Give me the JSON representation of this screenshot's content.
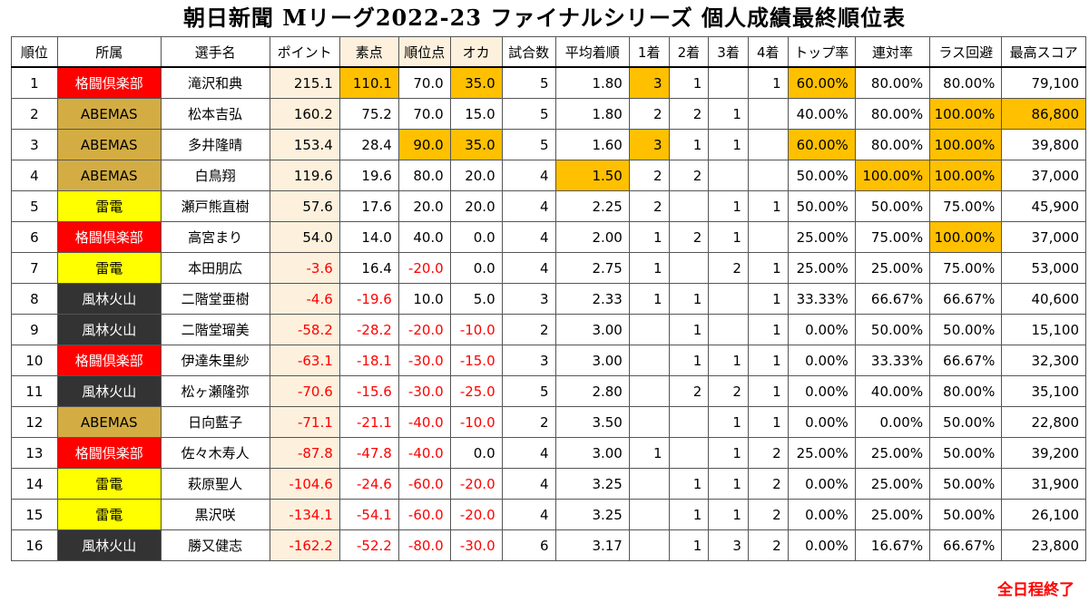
{
  "title": "朝日新聞 Mリーグ2022-23 ファイナルシリーズ 個人成績最終順位表",
  "footer_note": "全日程終了",
  "colors": {
    "highlight": "#ffc000",
    "negative_text": "#ff0000",
    "point_column_bg": "#fdf1dd",
    "teams": {
      "格闘倶楽部": {
        "bg": "#ff0000",
        "fg": "#ffffff"
      },
      "ABEMAS": {
        "bg": "#d3ad43",
        "fg": "#000000"
      },
      "雷電": {
        "bg": "#ffff00",
        "fg": "#000000"
      },
      "風林火山": {
        "bg": "#333333",
        "fg": "#ffffff"
      }
    }
  },
  "headers": [
    "順位",
    "所属",
    "選手名",
    "ポイント",
    "素点",
    "順位点",
    "オカ",
    "試合数",
    "平均着順",
    "1着",
    "2着",
    "3着",
    "4着",
    "トップ率",
    "連対率",
    "ラス回避",
    "最高スコア"
  ],
  "rows": [
    {
      "rank": "1",
      "team": "格闘倶楽部",
      "name": "滝沢和典",
      "point": "215.1",
      "raw": "110.1",
      "rank_pt": "70.0",
      "oka": "35.0",
      "games": "5",
      "avg": "1.80",
      "f1": "3",
      "f2": "1",
      "f3": "",
      "f4": "1",
      "top": "60.00%",
      "rentai": "80.00%",
      "las": "80.00%",
      "best": "79,100",
      "hl": [
        "raw",
        "oka",
        "f1",
        "top"
      ]
    },
    {
      "rank": "2",
      "team": "ABEMAS",
      "name": "松本吉弘",
      "point": "160.2",
      "raw": "75.2",
      "rank_pt": "70.0",
      "oka": "15.0",
      "games": "5",
      "avg": "1.80",
      "f1": "2",
      "f2": "2",
      "f3": "1",
      "f4": "",
      "top": "40.00%",
      "rentai": "80.00%",
      "las": "100.00%",
      "best": "86,800",
      "hl": [
        "las",
        "best"
      ]
    },
    {
      "rank": "3",
      "team": "ABEMAS",
      "name": "多井隆晴",
      "point": "153.4",
      "raw": "28.4",
      "rank_pt": "90.0",
      "oka": "35.0",
      "games": "5",
      "avg": "1.60",
      "f1": "3",
      "f2": "1",
      "f3": "1",
      "f4": "",
      "top": "60.00%",
      "rentai": "80.00%",
      "las": "100.00%",
      "best": "39,800",
      "hl": [
        "rank_pt",
        "oka",
        "f1",
        "top",
        "las"
      ]
    },
    {
      "rank": "4",
      "team": "ABEMAS",
      "name": "白鳥翔",
      "point": "119.6",
      "raw": "19.6",
      "rank_pt": "80.0",
      "oka": "20.0",
      "games": "4",
      "avg": "1.50",
      "f1": "2",
      "f2": "2",
      "f3": "",
      "f4": "",
      "top": "50.00%",
      "rentai": "100.00%",
      "las": "100.00%",
      "best": "37,000",
      "hl": [
        "avg",
        "rentai",
        "las"
      ]
    },
    {
      "rank": "5",
      "team": "雷電",
      "name": "瀬戸熊直樹",
      "point": "57.6",
      "raw": "17.6",
      "rank_pt": "20.0",
      "oka": "20.0",
      "games": "4",
      "avg": "2.25",
      "f1": "2",
      "f2": "",
      "f3": "1",
      "f4": "1",
      "top": "50.00%",
      "rentai": "50.00%",
      "las": "75.00%",
      "best": "45,900",
      "hl": []
    },
    {
      "rank": "6",
      "team": "格闘倶楽部",
      "name": "高宮まり",
      "point": "54.0",
      "raw": "14.0",
      "rank_pt": "40.0",
      "oka": "0.0",
      "games": "4",
      "avg": "2.00",
      "f1": "1",
      "f2": "2",
      "f3": "1",
      "f4": "",
      "top": "25.00%",
      "rentai": "75.00%",
      "las": "100.00%",
      "best": "37,000",
      "hl": [
        "las"
      ]
    },
    {
      "rank": "7",
      "team": "雷電",
      "name": "本田朋広",
      "point": "-3.6",
      "raw": "16.4",
      "rank_pt": "-20.0",
      "oka": "0.0",
      "games": "4",
      "avg": "2.75",
      "f1": "1",
      "f2": "",
      "f3": "2",
      "f4": "1",
      "top": "25.00%",
      "rentai": "25.00%",
      "las": "75.00%",
      "best": "53,000",
      "hl": []
    },
    {
      "rank": "8",
      "team": "風林火山",
      "name": "二階堂亜樹",
      "point": "-4.6",
      "raw": "-19.6",
      "rank_pt": "10.0",
      "oka": "5.0",
      "games": "3",
      "avg": "2.33",
      "f1": "1",
      "f2": "1",
      "f3": "",
      "f4": "1",
      "top": "33.33%",
      "rentai": "66.67%",
      "las": "66.67%",
      "best": "40,600",
      "hl": []
    },
    {
      "rank": "9",
      "team": "風林火山",
      "name": "二階堂瑠美",
      "point": "-58.2",
      "raw": "-28.2",
      "rank_pt": "-20.0",
      "oka": "-10.0",
      "games": "2",
      "avg": "3.00",
      "f1": "",
      "f2": "1",
      "f3": "",
      "f4": "1",
      "top": "0.00%",
      "rentai": "50.00%",
      "las": "50.00%",
      "best": "15,100",
      "hl": []
    },
    {
      "rank": "10",
      "team": "格闘倶楽部",
      "name": "伊達朱里紗",
      "point": "-63.1",
      "raw": "-18.1",
      "rank_pt": "-30.0",
      "oka": "-15.0",
      "games": "3",
      "avg": "3.00",
      "f1": "",
      "f2": "1",
      "f3": "1",
      "f4": "1",
      "top": "0.00%",
      "rentai": "33.33%",
      "las": "66.67%",
      "best": "32,300",
      "hl": []
    },
    {
      "rank": "11",
      "team": "風林火山",
      "name": "松ヶ瀬隆弥",
      "point": "-70.6",
      "raw": "-15.6",
      "rank_pt": "-30.0",
      "oka": "-25.0",
      "games": "5",
      "avg": "2.80",
      "f1": "",
      "f2": "2",
      "f3": "2",
      "f4": "1",
      "top": "0.00%",
      "rentai": "40.00%",
      "las": "80.00%",
      "best": "35,100",
      "hl": []
    },
    {
      "rank": "12",
      "team": "ABEMAS",
      "name": "日向藍子",
      "point": "-71.1",
      "raw": "-21.1",
      "rank_pt": "-40.0",
      "oka": "-10.0",
      "games": "2",
      "avg": "3.50",
      "f1": "",
      "f2": "",
      "f3": "1",
      "f4": "1",
      "top": "0.00%",
      "rentai": "0.00%",
      "las": "50.00%",
      "best": "22,800",
      "hl": []
    },
    {
      "rank": "13",
      "team": "格闘倶楽部",
      "name": "佐々木寿人",
      "point": "-87.8",
      "raw": "-47.8",
      "rank_pt": "-40.0",
      "oka": "0.0",
      "games": "4",
      "avg": "3.00",
      "f1": "1",
      "f2": "",
      "f3": "1",
      "f4": "2",
      "top": "25.00%",
      "rentai": "25.00%",
      "las": "50.00%",
      "best": "39,200",
      "hl": []
    },
    {
      "rank": "14",
      "team": "雷電",
      "name": "萩原聖人",
      "point": "-104.6",
      "raw": "-24.6",
      "rank_pt": "-60.0",
      "oka": "-20.0",
      "games": "4",
      "avg": "3.25",
      "f1": "",
      "f2": "1",
      "f3": "1",
      "f4": "2",
      "top": "0.00%",
      "rentai": "25.00%",
      "las": "50.00%",
      "best": "31,900",
      "hl": []
    },
    {
      "rank": "15",
      "team": "雷電",
      "name": "黒沢咲",
      "point": "-134.1",
      "raw": "-54.1",
      "rank_pt": "-60.0",
      "oka": "-20.0",
      "games": "4",
      "avg": "3.25",
      "f1": "",
      "f2": "1",
      "f3": "1",
      "f4": "2",
      "top": "0.00%",
      "rentai": "25.00%",
      "las": "50.00%",
      "best": "26,100",
      "hl": []
    },
    {
      "rank": "16",
      "team": "風林火山",
      "name": "勝又健志",
      "point": "-162.2",
      "raw": "-52.2",
      "rank_pt": "-80.0",
      "oka": "-30.0",
      "games": "6",
      "avg": "3.17",
      "f1": "",
      "f2": "1",
      "f3": "3",
      "f4": "2",
      "top": "0.00%",
      "rentai": "16.67%",
      "las": "66.67%",
      "best": "23,800",
      "hl": []
    }
  ]
}
